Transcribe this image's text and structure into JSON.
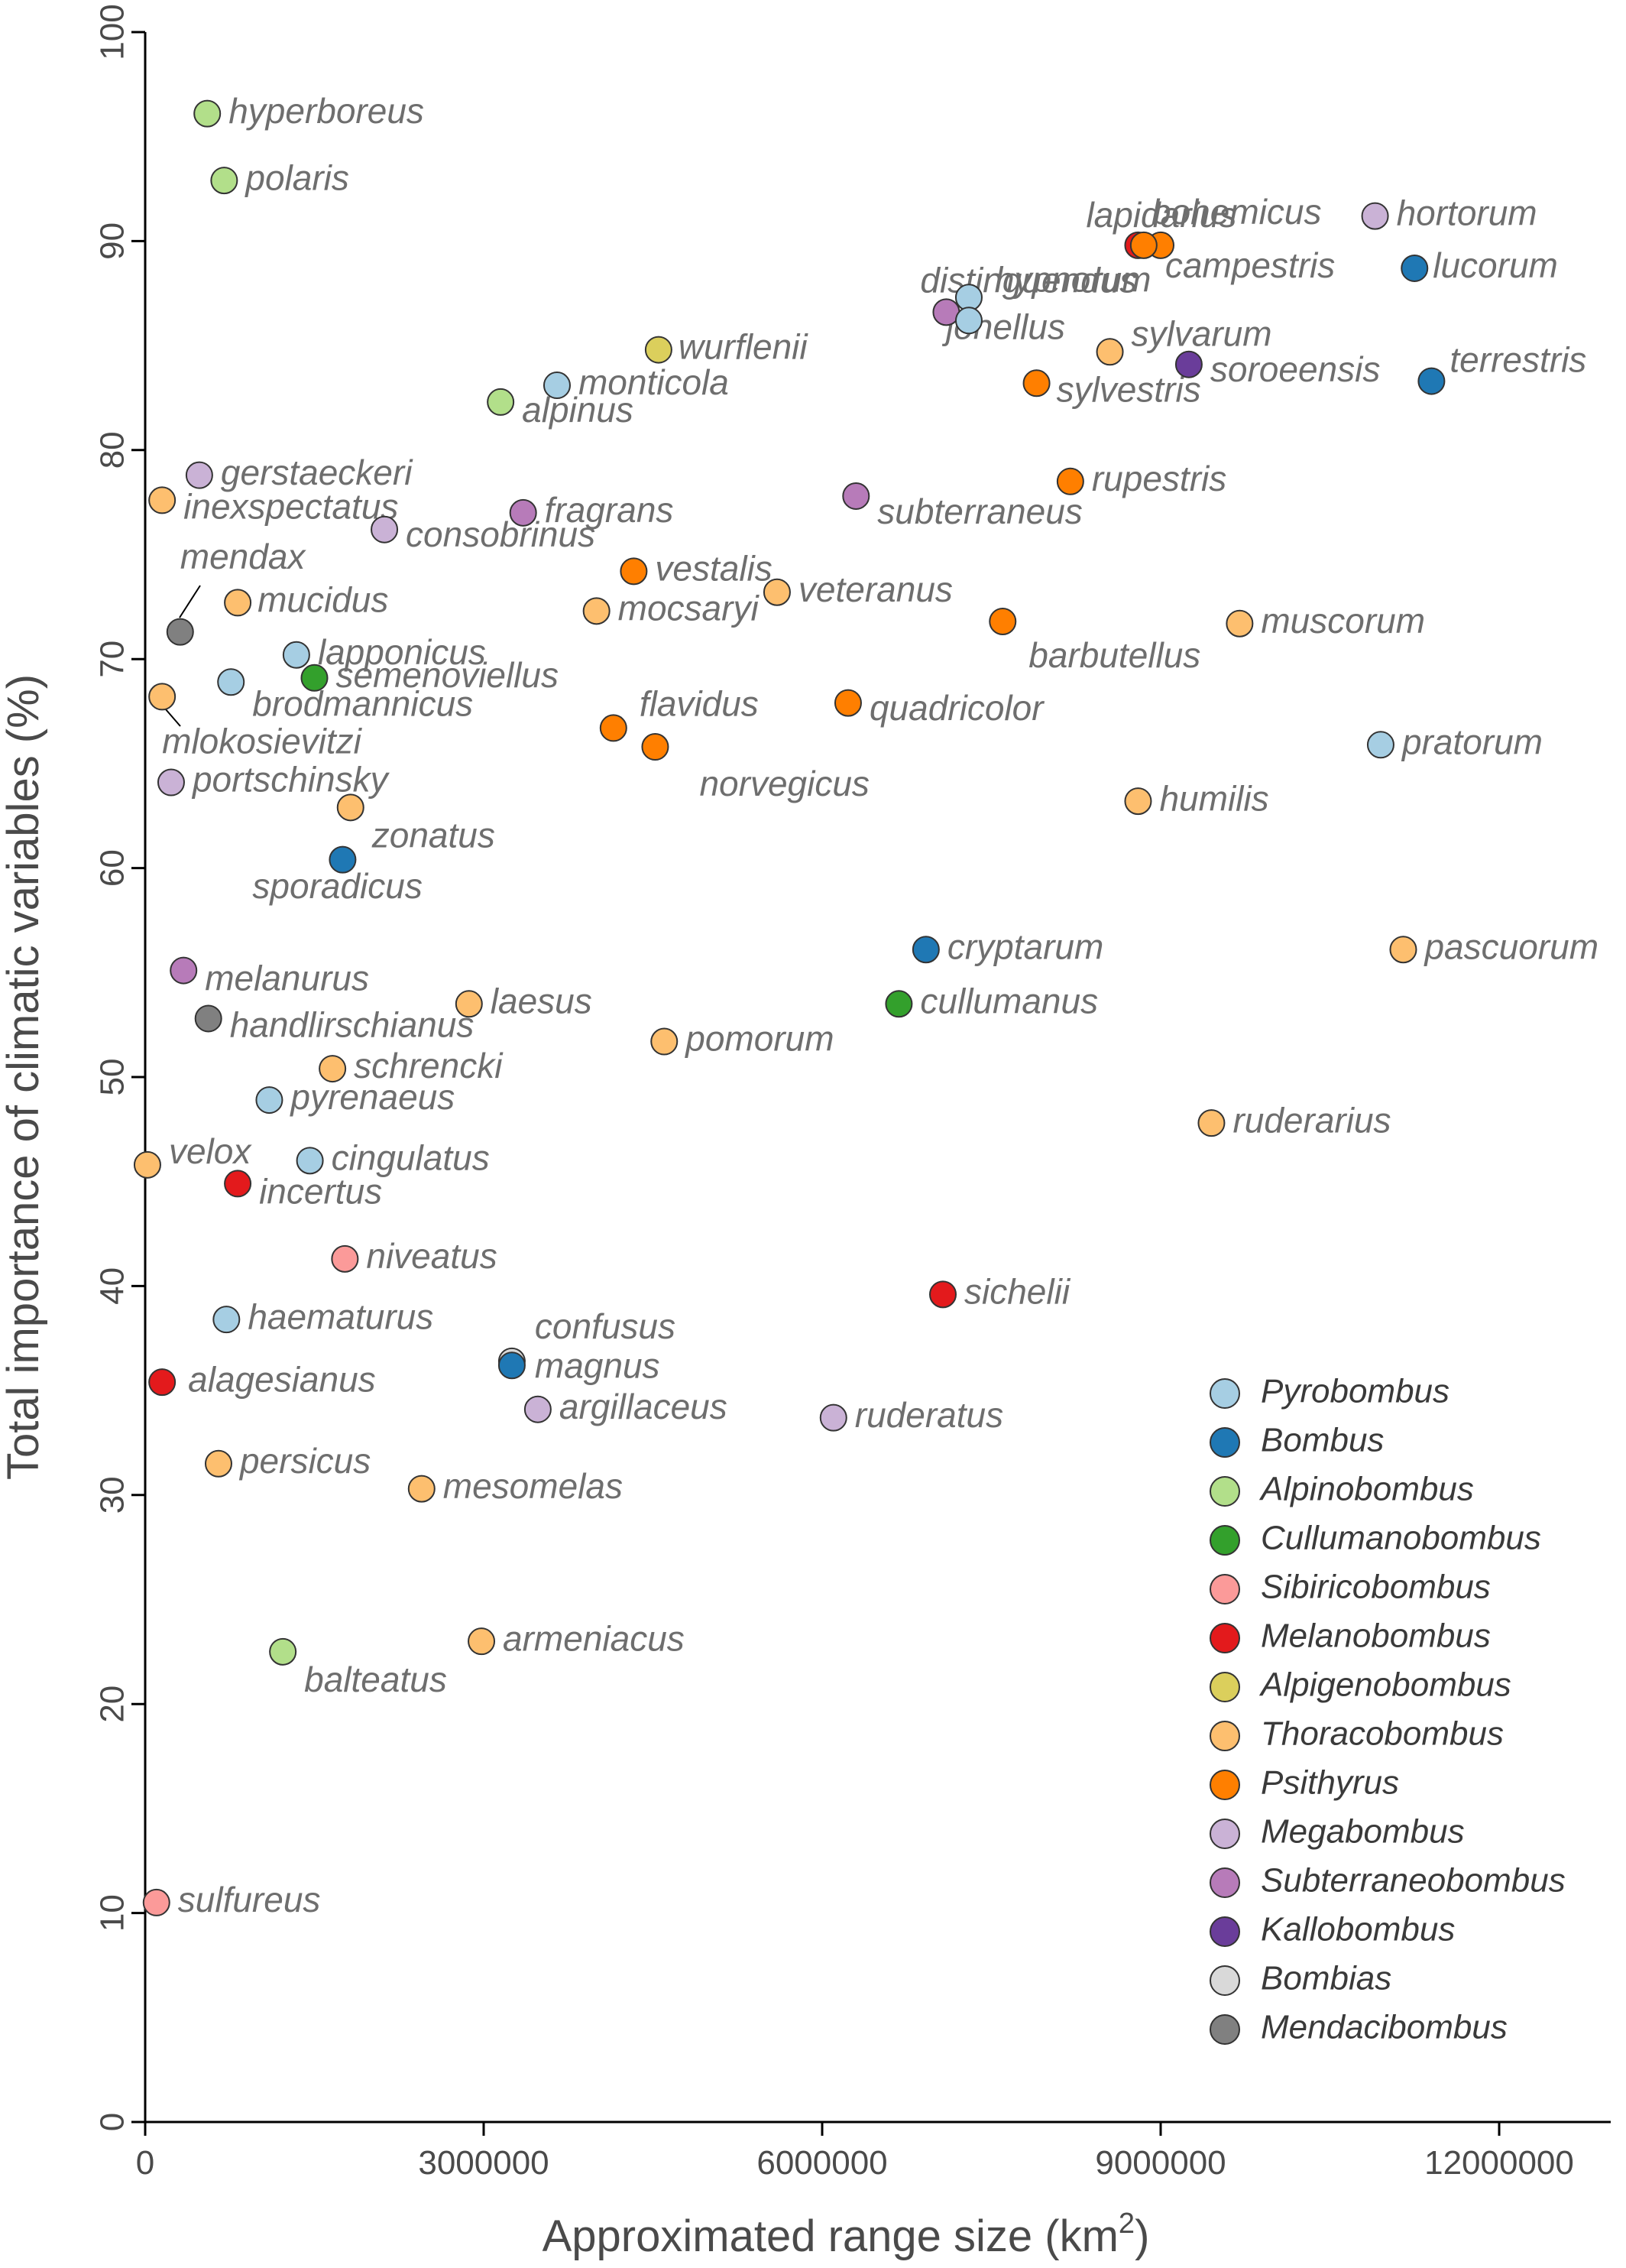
{
  "chart_data": {
    "type": "scatter",
    "xlabel": "Approximated range size (km",
    "xlabel_sup": "2",
    "xlabel_end": ")",
    "ylabel": "Total importance of climatic variables (%)",
    "xlim": [
      0,
      13000000
    ],
    "ylim": [
      0,
      100
    ],
    "x_ticks": [
      0,
      3000000,
      6000000,
      9000000,
      12000000
    ],
    "x_tick_labels": [
      "0",
      "3000000",
      "6000000",
      "9000000",
      "12000000"
    ],
    "y_ticks": [
      0,
      10,
      20,
      30,
      40,
      50,
      60,
      70,
      80,
      90,
      100
    ],
    "y_tick_labels": [
      "0",
      "10",
      "20",
      "30",
      "40",
      "50",
      "60",
      "70",
      "80",
      "90",
      "100"
    ],
    "grid": false,
    "legend_position": "bottom-right",
    "groups": [
      {
        "name": "Pyrobombus",
        "color": "#a6cee3"
      },
      {
        "name": "Bombus",
        "color": "#1f78b4"
      },
      {
        "name": "Alpinobombus",
        "color": "#b2df8a"
      },
      {
        "name": "Cullumanobombus",
        "color": "#33a02c"
      },
      {
        "name": "Sibiricobombus",
        "color": "#fb9a99"
      },
      {
        "name": "Melanobombus",
        "color": "#e31a1c"
      },
      {
        "name": "Alpigenobombus",
        "color": "#dbcf5c"
      },
      {
        "name": "Thoracobombus",
        "color": "#fdbf6f"
      },
      {
        "name": "Psithyrus",
        "color": "#ff7f00"
      },
      {
        "name": "Megabombus",
        "color": "#cab2d6"
      },
      {
        "name": "Subterraneobombus",
        "color": "#b77bb9"
      },
      {
        "name": "Kallobombus",
        "color": "#6a3d9a"
      },
      {
        "name": "Bombias",
        "color": "#d9d9d9"
      },
      {
        "name": "Mendacibombus",
        "color": "#808080"
      }
    ],
    "points": [
      {
        "name": "hyperboreus",
        "x": 550000,
        "y": 96.1,
        "group": "Alpinobombus"
      },
      {
        "name": "polaris",
        "x": 700000,
        "y": 92.9,
        "group": "Alpinobombus"
      },
      {
        "name": "lapidarius",
        "x": 8800000,
        "y": 89.8,
        "group": "Melanobombus"
      },
      {
        "name": "bohemicus",
        "x": 9000000,
        "y": 89.8,
        "group": "Psithyrus"
      },
      {
        "name": "campestris",
        "x": 8850000,
        "y": 89.8,
        "group": "Psithyrus"
      },
      {
        "name": "hortorum",
        "x": 10900000,
        "y": 91.2,
        "group": "Megabombus"
      },
      {
        "name": "lucorum",
        "x": 11250000,
        "y": 88.7,
        "group": "Bombus"
      },
      {
        "name": "distinguendus",
        "x": 7100000,
        "y": 86.6,
        "group": "Subterraneobombus"
      },
      {
        "name": "hypnorum",
        "x": 7300000,
        "y": 87.3,
        "group": "Pyrobombus"
      },
      {
        "name": "jonellus",
        "x": 7300000,
        "y": 86.2,
        "group": "Pyrobombus"
      },
      {
        "name": "sylvarum",
        "x": 8550000,
        "y": 84.7,
        "group": "Thoracobombus"
      },
      {
        "name": "soroeensis",
        "x": 9250000,
        "y": 84.1,
        "group": "Kallobombus"
      },
      {
        "name": "terrestris",
        "x": 11400000,
        "y": 83.3,
        "group": "Bombus"
      },
      {
        "name": "sylvestris",
        "x": 7900000,
        "y": 83.2,
        "group": "Psithyrus"
      },
      {
        "name": "wurflenii",
        "x": 4550000,
        "y": 84.8,
        "group": "Alpigenobombus"
      },
      {
        "name": "monticola",
        "x": 3650000,
        "y": 83.1,
        "group": "Pyrobombus"
      },
      {
        "name": "alpinus",
        "x": 3150000,
        "y": 82.3,
        "group": "Alpinobombus"
      },
      {
        "name": "rupestris",
        "x": 8200000,
        "y": 78.5,
        "group": "Psithyrus"
      },
      {
        "name": "subterraneus",
        "x": 6300000,
        "y": 77.8,
        "group": "Subterraneobombus"
      },
      {
        "name": "gerstaeckeri",
        "x": 480000,
        "y": 78.8,
        "group": "Megabombus"
      },
      {
        "name": "inexspectatus",
        "x": 150000,
        "y": 77.6,
        "group": "Thoracobombus"
      },
      {
        "name": "fragrans",
        "x": 3350000,
        "y": 77.0,
        "group": "Subterraneobombus"
      },
      {
        "name": "consobrinus",
        "x": 2120000,
        "y": 76.2,
        "group": "Megabombus"
      },
      {
        "name": "vestalis",
        "x": 4330000,
        "y": 74.2,
        "group": "Psithyrus"
      },
      {
        "name": "veteranus",
        "x": 5600000,
        "y": 73.2,
        "group": "Thoracobombus"
      },
      {
        "name": "mocsaryi",
        "x": 4000000,
        "y": 72.3,
        "group": "Thoracobombus"
      },
      {
        "name": "mendax",
        "x": 310000,
        "y": 71.3,
        "group": "Mendacibombus"
      },
      {
        "name": "mucidus",
        "x": 820000,
        "y": 72.7,
        "group": "Thoracobombus"
      },
      {
        "name": "barbutellus",
        "x": 7600000,
        "y": 71.8,
        "group": "Psithyrus"
      },
      {
        "name": "muscorum",
        "x": 9700000,
        "y": 71.7,
        "group": "Thoracobombus"
      },
      {
        "name": "lapponicus",
        "x": 1340000,
        "y": 70.2,
        "group": "Pyrobombus"
      },
      {
        "name": "semenoviellus",
        "x": 1500000,
        "y": 69.1,
        "group": "Cullumanobombus"
      },
      {
        "name": "brodmannicus",
        "x": 760000,
        "y": 68.9,
        "group": "Pyrobombus"
      },
      {
        "name": "mlokosievitzi",
        "x": 150000,
        "y": 68.2,
        "group": "Thoracobombus"
      },
      {
        "name": "flavidus",
        "x": 4150000,
        "y": 66.7,
        "group": "Psithyrus"
      },
      {
        "name": "quadricolor",
        "x": 6230000,
        "y": 67.9,
        "group": "Psithyrus"
      },
      {
        "name": "norvegicus",
        "x": 4520000,
        "y": 65.8,
        "group": "Psithyrus"
      },
      {
        "name": "pratorum",
        "x": 10950000,
        "y": 65.9,
        "group": "Pyrobombus"
      },
      {
        "name": "portschinsky",
        "x": 230000,
        "y": 64.1,
        "group": "Megabombus"
      },
      {
        "name": "zonatus",
        "x": 1820000,
        "y": 62.9,
        "group": "Thoracobombus"
      },
      {
        "name": "humilis",
        "x": 8800000,
        "y": 63.2,
        "group": "Thoracobombus"
      },
      {
        "name": "sporadicus",
        "x": 1750000,
        "y": 60.4,
        "group": "Bombus"
      },
      {
        "name": "cryptarum",
        "x": 6920000,
        "y": 56.1,
        "group": "Bombus"
      },
      {
        "name": "pascuorum",
        "x": 11150000,
        "y": 56.1,
        "group": "Thoracobombus"
      },
      {
        "name": "melanurus",
        "x": 340000,
        "y": 55.1,
        "group": "Subterraneobombus"
      },
      {
        "name": "cullumanus",
        "x": 6680000,
        "y": 53.5,
        "group": "Cullumanobombus"
      },
      {
        "name": "laesus",
        "x": 2870000,
        "y": 53.5,
        "group": "Thoracobombus"
      },
      {
        "name": "handlirschianus",
        "x": 560000,
        "y": 52.8,
        "group": "Mendacibombus"
      },
      {
        "name": "pomorum",
        "x": 4600000,
        "y": 51.7,
        "group": "Thoracobombus"
      },
      {
        "name": "schrencki",
        "x": 1660000,
        "y": 50.4,
        "group": "Thoracobombus"
      },
      {
        "name": "pyrenaeus",
        "x": 1100000,
        "y": 48.9,
        "group": "Pyrobombus"
      },
      {
        "name": "ruderarius",
        "x": 9450000,
        "y": 47.8,
        "group": "Thoracobombus"
      },
      {
        "name": "velox",
        "x": 20000,
        "y": 45.8,
        "group": "Thoracobombus"
      },
      {
        "name": "cingulatus",
        "x": 1460000,
        "y": 46.0,
        "group": "Pyrobombus"
      },
      {
        "name": "incertus",
        "x": 820000,
        "y": 44.9,
        "group": "Melanobombus"
      },
      {
        "name": "niveatus",
        "x": 1770000,
        "y": 41.3,
        "group": "Sibiricobombus"
      },
      {
        "name": "sichelii",
        "x": 7070000,
        "y": 39.6,
        "group": "Melanobombus"
      },
      {
        "name": "haematurus",
        "x": 720000,
        "y": 38.4,
        "group": "Pyrobombus"
      },
      {
        "name": "confusus",
        "x": 3250000,
        "y": 36.4,
        "group": "Bombias"
      },
      {
        "name": "magnus",
        "x": 3250000,
        "y": 36.2,
        "group": "Bombus"
      },
      {
        "name": "alagesianus",
        "x": 150000,
        "y": 35.4,
        "group": "Melanobombus"
      },
      {
        "name": "argillaceus",
        "x": 3480000,
        "y": 34.1,
        "group": "Megabombus"
      },
      {
        "name": "ruderatus",
        "x": 6100000,
        "y": 33.7,
        "group": "Megabombus"
      },
      {
        "name": "persicus",
        "x": 650000,
        "y": 31.5,
        "group": "Thoracobombus"
      },
      {
        "name": "mesomelas",
        "x": 2450000,
        "y": 30.3,
        "group": "Thoracobombus"
      },
      {
        "name": "balteatus",
        "x": 1220000,
        "y": 22.5,
        "group": "Alpinobombus"
      },
      {
        "name": "armeniacus",
        "x": 2980000,
        "y": 23.0,
        "group": "Thoracobombus"
      },
      {
        "name": "sulfureus",
        "x": 100000,
        "y": 10.5,
        "group": "Sibiricobombus"
      }
    ]
  }
}
